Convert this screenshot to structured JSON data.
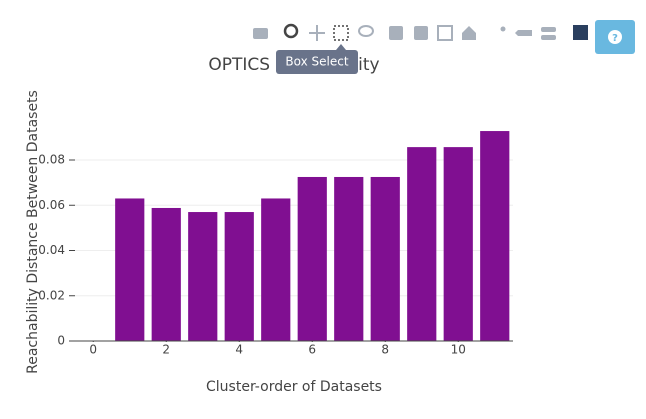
{
  "chart_data": {
    "type": "bar",
    "title": "OPTICS Reachability",
    "x_label": "Cluster-order of Datasets",
    "y_label": "Reachability Distance Between Datasets",
    "x": [
      1,
      2,
      3,
      4,
      5,
      6,
      7,
      8,
      9,
      10,
      11
    ],
    "values": [
      0.063,
      0.0588,
      0.057,
      0.057,
      0.063,
      0.0725,
      0.0725,
      0.0725,
      0.0857,
      0.0857,
      0.0928
    ],
    "color": "#800f91",
    "xlim": [
      -0.5,
      11.5
    ],
    "xticks": [
      0,
      2,
      4,
      6,
      8,
      10
    ],
    "ylim": [
      0,
      0.0968
    ],
    "yticks": [
      0,
      0.02,
      0.04,
      0.06,
      0.08
    ],
    "grid": true
  },
  "toolbar": {
    "tooltip": "Box Select",
    "help": "?"
  }
}
